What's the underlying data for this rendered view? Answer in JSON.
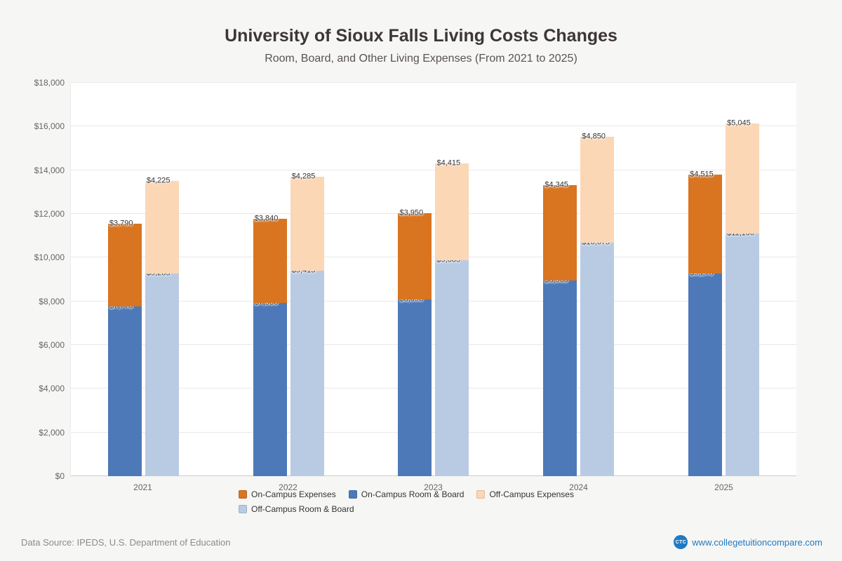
{
  "header": {
    "title": "University of Sioux Falls Living Costs Changes",
    "subtitle": "Room, Board, and Other Living Expenses (From 2021 to 2025)"
  },
  "chart_data": {
    "type": "bar",
    "stacked": true,
    "title": "University of Sioux Falls Living Costs Changes",
    "subtitle": "Room, Board, and Other Living Expenses (From 2021 to 2025)",
    "categories": [
      "2021",
      "2022",
      "2023",
      "2024",
      "2025"
    ],
    "series": [
      {
        "name": "On-Campus Room & Board",
        "stack": "on-campus",
        "color": "#4e79b8",
        "values": [
          7770,
          7930,
          8090,
          8960,
          9270
        ]
      },
      {
        "name": "On-Campus Expenses",
        "stack": "on-campus",
        "color": "#d97420",
        "values": [
          3790,
          3840,
          3950,
          4345,
          4515
        ]
      },
      {
        "name": "Off-Campus Room & Board",
        "stack": "off-campus",
        "color": "#b9cbe3",
        "values": [
          9285,
          9415,
          9885,
          10675,
          11100
        ]
      },
      {
        "name": "Off-Campus Expenses",
        "stack": "off-campus",
        "color": "#fbd7b5",
        "values": [
          4225,
          4285,
          4415,
          4850,
          5045
        ]
      }
    ],
    "xlabel": "",
    "ylabel": "",
    "ylim": [
      0,
      18000
    ],
    "ytick_step": 2000,
    "value_prefix": "$",
    "grid": true,
    "legend_position": "bottom"
  },
  "legend": {
    "items": [
      {
        "label": "On-Campus Expenses",
        "color": "#d97420"
      },
      {
        "label": "On-Campus Room & Board",
        "color": "#4e79b8"
      },
      {
        "label": "Off-Campus Expenses",
        "color": "#fbd7b5"
      },
      {
        "label": "Off-Campus Room & Board",
        "color": "#b9cbe3"
      }
    ]
  },
  "footer": {
    "source": "Data Source: IPEDS, U.S. Department of Education",
    "logo": "CTC",
    "site": "www.collegetuitioncompare.com"
  }
}
